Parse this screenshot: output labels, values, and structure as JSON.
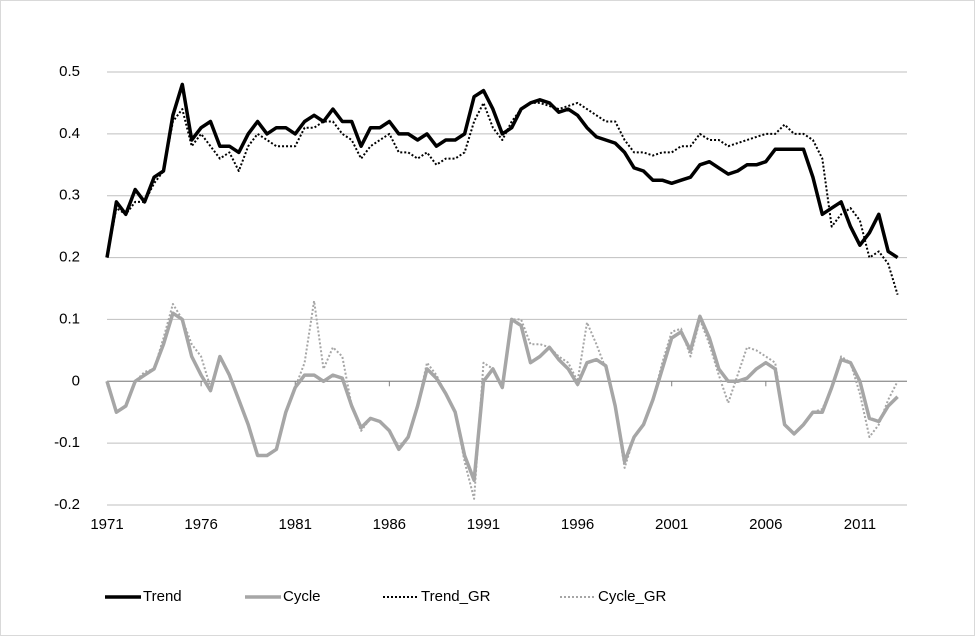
{
  "chart_data": {
    "type": "line",
    "x": [
      1971,
      1971.5,
      1972,
      1972.5,
      1973,
      1973.5,
      1974,
      1974.5,
      1975,
      1975.5,
      1976,
      1976.5,
      1977,
      1977.5,
      1978,
      1978.5,
      1979,
      1979.5,
      1980,
      1980.5,
      1981,
      1981.5,
      1982,
      1982.5,
      1983,
      1983.5,
      1984,
      1984.5,
      1985,
      1985.5,
      1986,
      1986.5,
      1987,
      1987.5,
      1988,
      1988.5,
      1989,
      1989.5,
      1990,
      1990.5,
      1991,
      1991.5,
      1992,
      1992.5,
      1993,
      1993.5,
      1994,
      1994.5,
      1995,
      1995.5,
      1996,
      1996.5,
      1997,
      1997.5,
      1998,
      1998.5,
      1999,
      1999.5,
      2000,
      2000.5,
      2001,
      2001.5,
      2002,
      2002.5,
      2003,
      2003.5,
      2004,
      2004.5,
      2005,
      2005.5,
      2006,
      2006.5,
      2007,
      2007.5,
      2008,
      2008.5,
      2009,
      2009.5,
      2010,
      2010.5,
      2011,
      2011.5,
      2012,
      2012.5,
      2013
    ],
    "series": [
      {
        "name": "Trend",
        "color": "#000000",
        "style": "solid",
        "values": [
          0.2,
          0.29,
          0.27,
          0.31,
          0.29,
          0.33,
          0.34,
          0.43,
          0.48,
          0.39,
          0.41,
          0.42,
          0.38,
          0.38,
          0.37,
          0.4,
          0.42,
          0.4,
          0.41,
          0.41,
          0.4,
          0.42,
          0.43,
          0.42,
          0.44,
          0.42,
          0.42,
          0.38,
          0.41,
          0.41,
          0.42,
          0.4,
          0.4,
          0.39,
          0.4,
          0.38,
          0.39,
          0.39,
          0.4,
          0.46,
          0.47,
          0.44,
          0.4,
          0.41,
          0.44,
          0.45,
          0.455,
          0.45,
          0.435,
          0.44,
          0.43,
          0.41,
          0.395,
          0.39,
          0.385,
          0.37,
          0.345,
          0.34,
          0.325,
          0.325,
          0.32,
          0.325,
          0.33,
          0.35,
          0.355,
          0.345,
          0.335,
          0.34,
          0.35,
          0.35,
          0.355,
          0.375,
          0.375,
          0.375,
          0.375,
          0.33,
          0.27,
          0.28,
          0.29,
          0.25,
          0.22,
          0.24,
          0.27,
          0.21,
          0.2
        ]
      },
      {
        "name": "Cycle",
        "color": "#a6a6a6",
        "style": "solid",
        "values": [
          0,
          -0.05,
          -0.04,
          0,
          0.01,
          0.02,
          0.06,
          0.11,
          0.1,
          0.04,
          0.01,
          -0.015,
          0.04,
          0.01,
          -0.03,
          -0.07,
          -0.12,
          -0.12,
          -0.11,
          -0.05,
          -0.01,
          0.01,
          0.01,
          0,
          0.01,
          0.005,
          -0.04,
          -0.075,
          -0.06,
          -0.065,
          -0.08,
          -0.11,
          -0.09,
          -0.04,
          0.02,
          0.005,
          -0.02,
          -0.05,
          -0.12,
          -0.16,
          0,
          0.02,
          -0.01,
          0.1,
          0.09,
          0.03,
          0.04,
          0.055,
          0.035,
          0.02,
          -0.005,
          0.03,
          0.035,
          0.025,
          -0.04,
          -0.13,
          -0.09,
          -0.07,
          -0.03,
          0.02,
          0.07,
          0.08,
          0.05,
          0.105,
          0.07,
          0.02,
          0,
          0,
          0.005,
          0.02,
          0.03,
          0.02,
          -0.07,
          -0.085,
          -0.07,
          -0.05,
          -0.05,
          -0.01,
          0.035,
          0.03,
          0,
          -0.06,
          -0.065,
          -0.04,
          -0.025
        ]
      },
      {
        "name": "Trend_GR",
        "color": "#000000",
        "style": "dotted",
        "values": [
          0.2,
          0.28,
          0.27,
          0.29,
          0.29,
          0.32,
          0.34,
          0.42,
          0.44,
          0.38,
          0.4,
          0.38,
          0.36,
          0.37,
          0.34,
          0.38,
          0.4,
          0.39,
          0.38,
          0.38,
          0.38,
          0.41,
          0.41,
          0.42,
          0.42,
          0.4,
          0.39,
          0.36,
          0.38,
          0.39,
          0.4,
          0.37,
          0.37,
          0.36,
          0.37,
          0.35,
          0.36,
          0.36,
          0.37,
          0.42,
          0.45,
          0.41,
          0.39,
          0.42,
          0.44,
          0.45,
          0.45,
          0.445,
          0.44,
          0.445,
          0.45,
          0.44,
          0.43,
          0.42,
          0.42,
          0.39,
          0.37,
          0.37,
          0.365,
          0.37,
          0.37,
          0.38,
          0.38,
          0.4,
          0.39,
          0.39,
          0.38,
          0.385,
          0.39,
          0.395,
          0.4,
          0.4,
          0.415,
          0.4,
          0.4,
          0.39,
          0.36,
          0.25,
          0.27,
          0.28,
          0.26,
          0.2,
          0.21,
          0.19,
          0.14
        ]
      },
      {
        "name": "Cycle_GR",
        "color": "#a6a6a6",
        "style": "dotted",
        "values": [
          0,
          -0.05,
          -0.04,
          0,
          0.015,
          0.02,
          0.07,
          0.125,
          0.1,
          0.06,
          0.04,
          -0.01,
          0.04,
          0.01,
          -0.03,
          -0.07,
          -0.12,
          -0.12,
          -0.11,
          -0.05,
          -0.01,
          0.03,
          0.13,
          0.02,
          0.055,
          0.04,
          -0.04,
          -0.08,
          -0.06,
          -0.065,
          -0.08,
          -0.105,
          -0.09,
          -0.04,
          0.03,
          0.01,
          -0.02,
          -0.05,
          -0.13,
          -0.19,
          0.03,
          0.02,
          -0.01,
          0.1,
          0.1,
          0.06,
          0.06,
          0.055,
          0.04,
          0.03,
          0,
          0.095,
          0.06,
          0.02,
          -0.04,
          -0.14,
          -0.09,
          -0.07,
          -0.03,
          0.03,
          0.08,
          0.085,
          0.04,
          0.1,
          0.06,
          0.01,
          -0.035,
          0.01,
          0.055,
          0.05,
          0.04,
          0.03,
          -0.07,
          -0.085,
          -0.07,
          -0.05,
          -0.045,
          -0.01,
          0.04,
          0.03,
          -0.02,
          -0.09,
          -0.07,
          -0.03,
          0
        ]
      }
    ],
    "xlim": [
      1971,
      2013.5
    ],
    "xticks": [
      1971,
      1976,
      1981,
      1986,
      1991,
      1996,
      2001,
      2006,
      2011
    ],
    "ylim": [
      -0.2,
      0.5
    ],
    "yticks": [
      -0.2,
      -0.1,
      0,
      0.1,
      0.2,
      0.3,
      0.4,
      0.5
    ],
    "grid": true,
    "legend": "bottom"
  }
}
